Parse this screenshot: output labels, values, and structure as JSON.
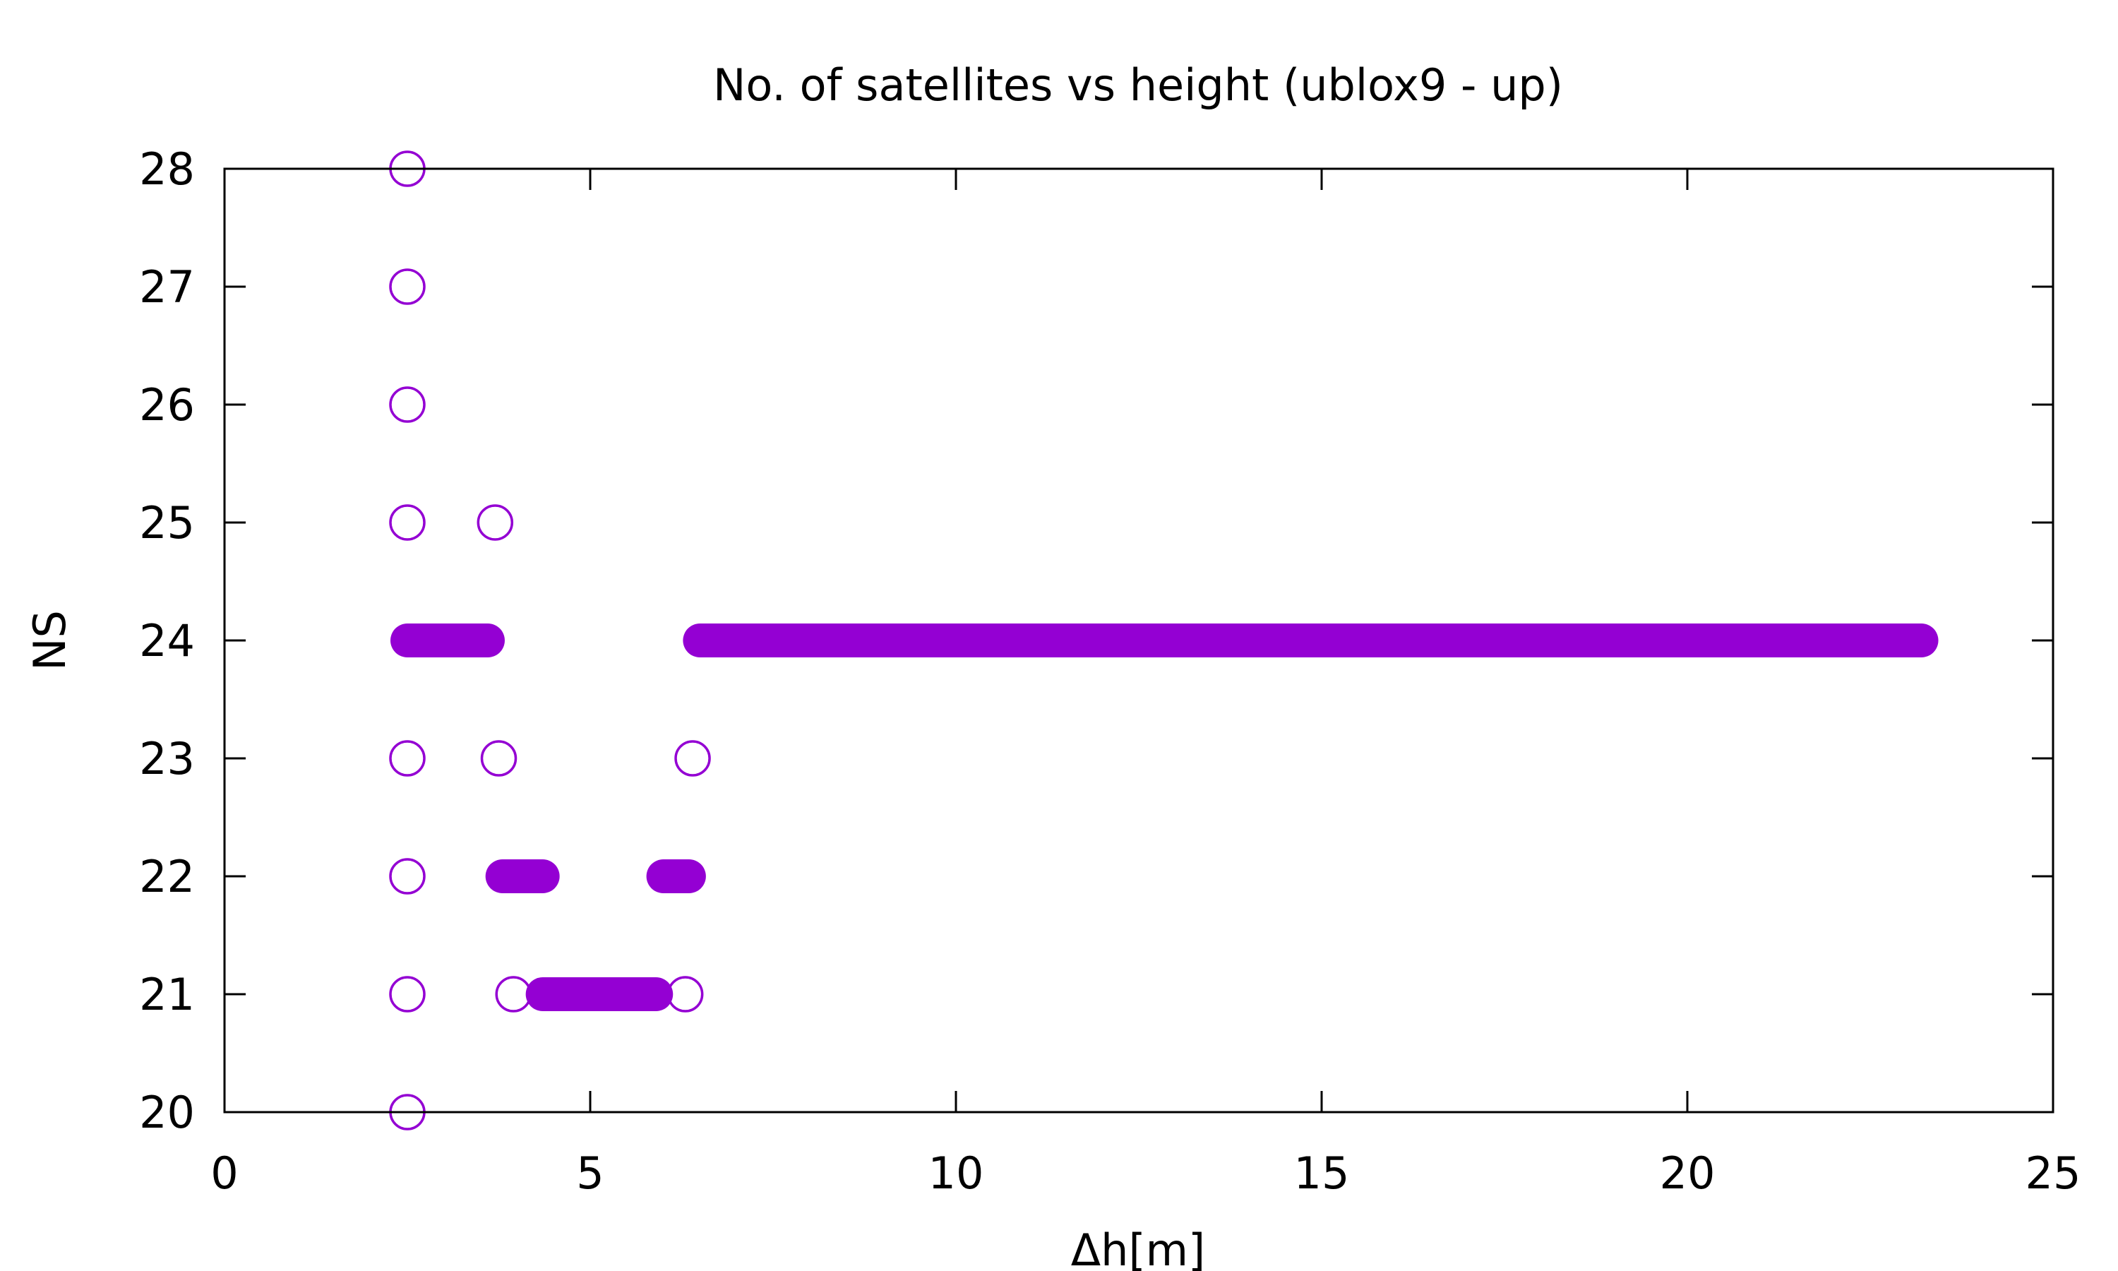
{
  "chart_data": {
    "type": "scatter",
    "title": "No. of satellites vs height (ublox9 - up)",
    "xlabel": "Δh[m]",
    "ylabel": "NS",
    "xlim": [
      0,
      25
    ],
    "ylim": [
      20,
      28
    ],
    "x_ticks": [
      "0",
      "5",
      "10",
      "15",
      "20",
      "25"
    ],
    "y_ticks": [
      "20",
      "21",
      "22",
      "23",
      "24",
      "25",
      "26",
      "27",
      "28"
    ],
    "grid": false,
    "legend": "none",
    "marker": "open-circle",
    "color": "#9400d3",
    "points": [
      {
        "x": 2.5,
        "y": 28
      },
      {
        "x": 2.5,
        "y": 27
      },
      {
        "x": 2.5,
        "y": 26
      },
      {
        "x": 2.5,
        "y": 25
      },
      {
        "x": 3.7,
        "y": 25
      },
      {
        "x": 2.5,
        "y": 23
      },
      {
        "x": 3.75,
        "y": 23
      },
      {
        "x": 6.4,
        "y": 23
      },
      {
        "x": 2.5,
        "y": 22
      },
      {
        "x": 2.5,
        "y": 21
      },
      {
        "x": 3.95,
        "y": 21
      },
      {
        "x": 6.3,
        "y": 21
      },
      {
        "x": 2.5,
        "y": 20
      }
    ],
    "dense_runs": [
      {
        "y": 24,
        "x_from": 2.5,
        "x_to": 3.6
      },
      {
        "y": 24,
        "x_from": 6.5,
        "x_to": 23.2
      },
      {
        "y": 22,
        "x_from": 3.8,
        "x_to": 4.35
      },
      {
        "y": 22,
        "x_from": 6.0,
        "x_to": 6.35
      },
      {
        "y": 21,
        "x_from": 4.35,
        "x_to": 5.9
      }
    ]
  }
}
